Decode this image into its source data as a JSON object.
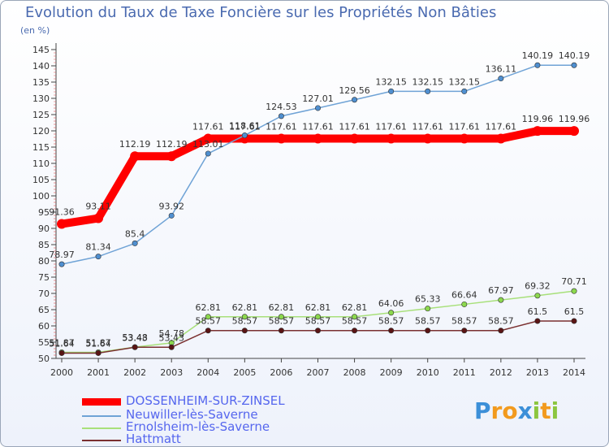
{
  "chart_data": {
    "type": "line",
    "title": "Evolution du Taux de Taxe Foncière sur les Propriétés Non Bâties",
    "unit_label": "(en %)",
    "x": [
      "2000",
      "2001",
      "2002",
      "2003",
      "2004",
      "2005",
      "2006",
      "2007",
      "2008",
      "2009",
      "2010",
      "2011",
      "2012",
      "2013",
      "2014"
    ],
    "ylim": [
      50,
      145
    ],
    "yticks": [
      50,
      55,
      60,
      65,
      70,
      75,
      80,
      85,
      90,
      95,
      100,
      105,
      110,
      115,
      120,
      125,
      130,
      135,
      140,
      145
    ],
    "grid": false,
    "legend_position": "bottom-left",
    "series": [
      {
        "name": "DOSSENHEIM-SUR-ZINSEL",
        "color": "#ff0000",
        "marker": "#ff0000",
        "width": 10,
        "values": [
          91.36,
          93.11,
          112.19,
          112.19,
          117.61,
          117.61,
          117.61,
          117.61,
          117.61,
          117.61,
          117.61,
          117.61,
          117.61,
          119.96,
          119.96
        ],
        "labels": [
          "91.36",
          "93.11",
          "112.19",
          "112.19",
          "117.61",
          "117.61",
          "117.61",
          "117.61",
          "117.61",
          "117.61",
          "117.61",
          "117.61",
          "117.61",
          "119.96",
          "119.96"
        ]
      },
      {
        "name": "Neuwiller-lès-Saverne",
        "color": "#6fa3d6",
        "marker": "#4f8fd0",
        "width": 1.5,
        "values": [
          78.97,
          81.34,
          85.4,
          93.92,
          113.01,
          118.61,
          124.53,
          127.01,
          129.56,
          132.15,
          132.15,
          132.15,
          136.11,
          140.19,
          140.19
        ],
        "labels": [
          "78.97",
          "81.34",
          "85.4",
          "93.92",
          "113.01",
          "118.61",
          "124.53",
          "127.01",
          "129.56",
          "132.15",
          "132.15",
          "132.15",
          "136.11",
          "140.19",
          "140.19"
        ]
      },
      {
        "name": "Ernolsheim-lès-Saverne",
        "color": "#a8e07a",
        "marker": "#8cd84e",
        "width": 1.5,
        "values": [
          51.87,
          51.87,
          53.48,
          54.78,
          62.81,
          62.81,
          62.81,
          62.81,
          62.81,
          64.06,
          65.33,
          66.64,
          67.97,
          69.32,
          70.71
        ],
        "labels": [
          "51.87",
          "51.87",
          "53.48",
          "54.78",
          "62.81",
          "62.81",
          "62.81",
          "62.81",
          "62.81",
          "64.06",
          "65.33",
          "66.64",
          "67.97",
          "69.32",
          "70.71"
        ]
      },
      {
        "name": "Hattmatt",
        "color": "#7a3030",
        "marker": "#5a1414",
        "width": 1.5,
        "values": [
          51.64,
          51.64,
          53.43,
          53.43,
          58.57,
          58.57,
          58.57,
          58.57,
          58.57,
          58.57,
          58.57,
          58.57,
          58.57,
          61.5,
          61.5
        ],
        "labels": [
          "51.64",
          "51.64",
          "53.43",
          "53.43",
          "58.57",
          "58.57",
          "58.57",
          "58.57",
          "58.57",
          "58.57",
          "58.57",
          "58.57",
          "58.57",
          "61.5",
          "61.5"
        ]
      }
    ]
  },
  "logo": {
    "text": "Proxiti"
  }
}
